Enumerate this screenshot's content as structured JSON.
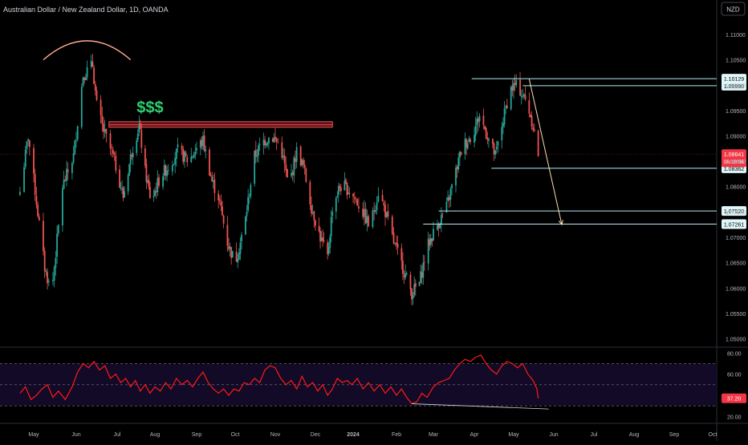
{
  "header": {
    "title": "Australian Dollar / New Zealand Dollar, 1D, OANDA",
    "currency_badge": "NZD"
  },
  "colors": {
    "background": "#000000",
    "up": "#26a69a",
    "down": "#ef5350",
    "axis_text": "#b2b5be",
    "level_line": "#b2ebf2",
    "zone_fill": "#5a1016",
    "zone_border": "#ef5350",
    "arc": "#ffab91",
    "dollar_text": "#2ecc71",
    "rsi_line": "#ff1a1a",
    "rsi_band": "#120a26",
    "last_price_bg": "#f23645"
  },
  "chart_data": [
    {
      "type": "candlestick",
      "symbol": "AUDNZD",
      "interval": "1D",
      "ylim": [
        1.0485,
        1.113
      ],
      "y_ticks": [
        "1.11000",
        "1.10500",
        "1.10000",
        "1.09500",
        "1.09000",
        "1.08500",
        "1.08000",
        "1.07500",
        "1.07000",
        "1.06500",
        "1.06000",
        "1.05500",
        "1.05000"
      ],
      "x_ticks": [
        "May",
        "Jun",
        "Jul",
        "Aug",
        "Sep",
        "Oct",
        "Nov",
        "Dec",
        "2024",
        "Feb",
        "Mar",
        "Apr",
        "May",
        "Jun",
        "Jul",
        "Aug",
        "Sep",
        "Oct"
      ],
      "bold_ticks": [
        "2024"
      ],
      "close_path": [
        [
          "2023-04-21",
          1.079
        ],
        [
          "2023-04-27",
          1.09
        ],
        [
          "2023-05-03",
          1.077
        ],
        [
          "2023-05-09",
          1.064
        ],
        [
          "2023-05-14",
          1.059
        ],
        [
          "2023-05-22",
          1.08
        ],
        [
          "2023-05-30",
          1.086
        ],
        [
          "2023-06-06",
          1.102
        ],
        [
          "2023-06-13",
          1.104
        ],
        [
          "2023-06-16",
          1.096
        ],
        [
          "2023-06-21",
          1.091
        ],
        [
          "2023-06-28",
          1.086
        ],
        [
          "2023-07-06",
          1.078
        ],
        [
          "2023-07-13",
          1.087
        ],
        [
          "2023-07-19",
          1.092
        ],
        [
          "2023-07-24",
          1.083
        ],
        [
          "2023-07-29",
          1.077
        ],
        [
          "2023-08-05",
          1.082
        ],
        [
          "2023-08-11",
          1.084
        ],
        [
          "2023-08-18",
          1.087
        ],
        [
          "2023-08-26",
          1.085
        ],
        [
          "2023-09-02",
          1.088
        ],
        [
          "2023-09-06",
          1.089
        ],
        [
          "2023-09-13",
          1.081
        ],
        [
          "2023-09-18",
          1.078
        ],
        [
          "2023-09-25",
          1.069
        ],
        [
          "2023-10-01",
          1.065
        ],
        [
          "2023-10-08",
          1.072
        ],
        [
          "2023-10-16",
          1.086
        ],
        [
          "2023-10-23",
          1.089
        ],
        [
          "2023-10-29",
          1.09
        ],
        [
          "2023-11-05",
          1.088
        ],
        [
          "2023-11-11",
          1.08
        ],
        [
          "2023-11-17",
          1.087
        ],
        [
          "2023-11-22",
          1.084
        ],
        [
          "2023-11-28",
          1.076
        ],
        [
          "2023-12-05",
          1.07
        ],
        [
          "2023-12-11",
          1.066
        ],
        [
          "2023-12-15",
          1.076
        ],
        [
          "2023-12-21",
          1.08
        ],
        [
          "2023-12-25",
          1.08
        ],
        [
          "2023-12-30",
          1.079
        ],
        [
          "2024-01-06",
          1.076
        ],
        [
          "2024-01-13",
          1.072
        ],
        [
          "2024-01-19",
          1.079
        ],
        [
          "2024-01-23",
          1.076
        ],
        [
          "2024-01-30",
          1.069
        ],
        [
          "2024-02-06",
          1.064
        ],
        [
          "2024-02-13",
          1.059
        ],
        [
          "2024-02-19",
          1.061
        ],
        [
          "2024-02-25",
          1.068
        ],
        [
          "2024-03-03",
          1.072
        ],
        [
          "2024-03-11",
          1.076
        ],
        [
          "2024-03-18",
          1.083
        ],
        [
          "2024-03-23",
          1.088
        ],
        [
          "2024-03-30",
          1.09
        ],
        [
          "2024-04-05",
          1.094
        ],
        [
          "2024-04-11",
          1.09
        ],
        [
          "2024-04-17",
          1.086
        ],
        [
          "2024-04-22",
          1.092
        ],
        [
          "2024-04-28",
          1.099
        ],
        [
          "2024-05-02",
          1.1
        ],
        [
          "2024-05-06",
          1.099
        ],
        [
          "2024-05-12",
          1.096
        ],
        [
          "2024-05-16",
          1.092
        ],
        [
          "2024-05-20",
          1.0864
        ]
      ],
      "current_price": "1.08641",
      "countdown": "06:10:06",
      "horizontal_levels": [
        "1.10129",
        "1.09990",
        "1.08362",
        "1.07520",
        "1.07261"
      ],
      "annotation_text": "$$$"
    },
    {
      "type": "line",
      "indicator": "RSI",
      "ylim": [
        18,
        84
      ],
      "y_ticks": [
        "80.00",
        "60.00",
        "40.00",
        "20.00"
      ],
      "band": [
        30,
        70
      ],
      "midline": 50,
      "current_value": "37.20",
      "series": [
        [
          "2023-04-21",
          42
        ],
        [
          "2023-04-25",
          48
        ],
        [
          "2023-04-29",
          36
        ],
        [
          "2023-05-03",
          40
        ],
        [
          "2023-05-07",
          46
        ],
        [
          "2023-05-11",
          50
        ],
        [
          "2023-05-15",
          38
        ],
        [
          "2023-05-19",
          44
        ],
        [
          "2023-05-24",
          36
        ],
        [
          "2023-05-29",
          48
        ],
        [
          "2023-06-02",
          62
        ],
        [
          "2023-06-06",
          70
        ],
        [
          "2023-06-10",
          66
        ],
        [
          "2023-06-14",
          72
        ],
        [
          "2023-06-18",
          64
        ],
        [
          "2023-06-22",
          68
        ],
        [
          "2023-06-26",
          56
        ],
        [
          "2023-06-30",
          60
        ],
        [
          "2023-07-04",
          52
        ],
        [
          "2023-07-08",
          56
        ],
        [
          "2023-07-12",
          48
        ],
        [
          "2023-07-16",
          54
        ],
        [
          "2023-07-20",
          44
        ],
        [
          "2023-07-24",
          50
        ],
        [
          "2023-07-28",
          42
        ],
        [
          "2023-08-01",
          48
        ],
        [
          "2023-08-05",
          44
        ],
        [
          "2023-08-09",
          52
        ],
        [
          "2023-08-13",
          46
        ],
        [
          "2023-08-17",
          56
        ],
        [
          "2023-08-21",
          50
        ],
        [
          "2023-08-25",
          54
        ],
        [
          "2023-08-29",
          48
        ],
        [
          "2023-09-02",
          56
        ],
        [
          "2023-09-06",
          62
        ],
        [
          "2023-09-10",
          52
        ],
        [
          "2023-09-14",
          46
        ],
        [
          "2023-09-18",
          42
        ],
        [
          "2023-09-22",
          46
        ],
        [
          "2023-09-26",
          40
        ],
        [
          "2023-09-30",
          46
        ],
        [
          "2023-10-04",
          44
        ],
        [
          "2023-10-08",
          52
        ],
        [
          "2023-10-12",
          50
        ],
        [
          "2023-10-16",
          56
        ],
        [
          "2023-10-20",
          52
        ],
        [
          "2023-10-24",
          64
        ],
        [
          "2023-10-28",
          68
        ],
        [
          "2023-11-01",
          66
        ],
        [
          "2023-11-05",
          56
        ],
        [
          "2023-11-09",
          50
        ],
        [
          "2023-11-13",
          54
        ],
        [
          "2023-11-17",
          46
        ],
        [
          "2023-11-21",
          58
        ],
        [
          "2023-11-25",
          48
        ],
        [
          "2023-11-29",
          52
        ],
        [
          "2023-12-03",
          44
        ],
        [
          "2023-12-07",
          50
        ],
        [
          "2023-12-11",
          40
        ],
        [
          "2023-12-15",
          46
        ],
        [
          "2023-12-19",
          56
        ],
        [
          "2023-12-23",
          52
        ],
        [
          "2023-12-27",
          54
        ],
        [
          "2023-12-31",
          50
        ],
        [
          "2024-01-04",
          56
        ],
        [
          "2024-01-08",
          46
        ],
        [
          "2024-01-12",
          52
        ],
        [
          "2024-01-16",
          44
        ],
        [
          "2024-01-20",
          50
        ],
        [
          "2024-01-24",
          42
        ],
        [
          "2024-01-28",
          48
        ],
        [
          "2024-02-01",
          40
        ],
        [
          "2024-02-05",
          46
        ],
        [
          "2024-02-09",
          38
        ],
        [
          "2024-02-13",
          32
        ],
        [
          "2024-02-17",
          34
        ],
        [
          "2024-02-21",
          42
        ],
        [
          "2024-02-25",
          38
        ],
        [
          "2024-03-01",
          48
        ],
        [
          "2024-03-05",
          52
        ],
        [
          "2024-03-09",
          54
        ],
        [
          "2024-03-13",
          56
        ],
        [
          "2024-03-17",
          64
        ],
        [
          "2024-03-21",
          70
        ],
        [
          "2024-03-25",
          74
        ],
        [
          "2024-03-29",
          72
        ],
        [
          "2024-04-02",
          76
        ],
        [
          "2024-04-06",
          78
        ],
        [
          "2024-04-10",
          70
        ],
        [
          "2024-04-14",
          64
        ],
        [
          "2024-04-18",
          60
        ],
        [
          "2024-04-22",
          68
        ],
        [
          "2024-04-26",
          72
        ],
        [
          "2024-04-30",
          70
        ],
        [
          "2024-05-04",
          66
        ],
        [
          "2024-05-08",
          70
        ],
        [
          "2024-05-12",
          60
        ],
        [
          "2024-05-16",
          54
        ],
        [
          "2024-05-19",
          46
        ],
        [
          "2024-05-20",
          37
        ]
      ]
    }
  ]
}
